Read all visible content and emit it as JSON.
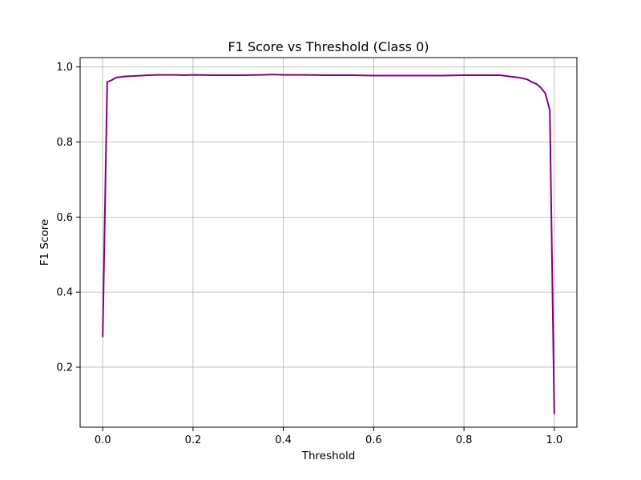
{
  "chart_data": {
    "type": "line",
    "title": "F1 Score vs Threshold (Class 0)",
    "xlabel": "Threshold",
    "ylabel": "F1 Score",
    "xlim": [
      -0.05,
      1.05
    ],
    "ylim": [
      0.04,
      1.025
    ],
    "xticks": [
      0.0,
      0.2,
      0.4,
      0.6,
      0.8,
      1.0
    ],
    "xtick_labels": [
      "0.0",
      "0.2",
      "0.4",
      "0.6",
      "0.8",
      "1.0"
    ],
    "yticks": [
      0.2,
      0.4,
      0.6,
      0.8,
      1.0
    ],
    "ytick_labels": [
      "0.2",
      "0.4",
      "0.6",
      "0.8",
      "1.0"
    ],
    "grid": true,
    "color": "#800080",
    "x": [
      0.0,
      0.01,
      0.02,
      0.03,
      0.05,
      0.07,
      0.1,
      0.12,
      0.14,
      0.16,
      0.18,
      0.2,
      0.25,
      0.3,
      0.35,
      0.38,
      0.4,
      0.45,
      0.5,
      0.55,
      0.6,
      0.65,
      0.7,
      0.75,
      0.8,
      0.85,
      0.88,
      0.9,
      0.92,
      0.94,
      0.95,
      0.96,
      0.97,
      0.98,
      0.99,
      1.0
    ],
    "y": [
      0.28,
      0.96,
      0.965,
      0.972,
      0.975,
      0.976,
      0.978,
      0.979,
      0.979,
      0.979,
      0.978,
      0.979,
      0.978,
      0.978,
      0.979,
      0.98,
      0.979,
      0.979,
      0.978,
      0.978,
      0.977,
      0.977,
      0.977,
      0.977,
      0.978,
      0.978,
      0.978,
      0.975,
      0.972,
      0.967,
      0.96,
      0.955,
      0.945,
      0.93,
      0.885,
      0.075
    ]
  }
}
